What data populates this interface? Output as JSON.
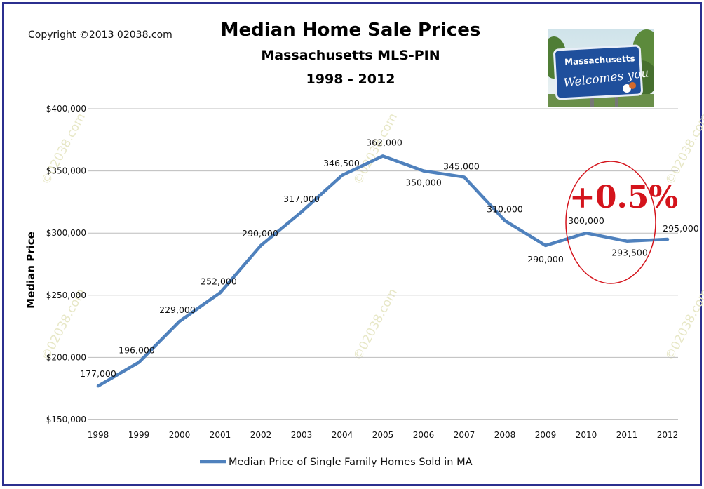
{
  "copyright": "Copyright ©2013 02038.com",
  "watermark_text": "©02038.com",
  "sign": {
    "line1": "Massachusetts",
    "line2": "Welcomes you"
  },
  "annotation": {
    "text": "+0.5%",
    "color": "#d4141c"
  },
  "chart_data": {
    "type": "line",
    "title": "Median Home Sale Prices",
    "subtitle": "Massachusetts MLS-PIN",
    "subtitle2": "1998 - 2012",
    "xlabel": "",
    "ylabel": "Median Price",
    "ylim": [
      150000,
      400000
    ],
    "yticks": [
      150000,
      200000,
      250000,
      300000,
      350000,
      400000
    ],
    "ytick_labels": [
      "$150,000",
      "$200,000",
      "$250,000",
      "$300,000",
      "$350,000",
      "$400,000"
    ],
    "grid": true,
    "legend_position": "bottom",
    "categories": [
      "1998",
      "1999",
      "2000",
      "2001",
      "2002",
      "2003",
      "2004",
      "2005",
      "2006",
      "2007",
      "2008",
      "2009",
      "2010",
      "2011",
      "2012"
    ],
    "series": [
      {
        "name": "Median Price of Single Family Homes Sold in MA",
        "color": "#4f81bd",
        "values": [
          177000,
          196000,
          229000,
          252000,
          290000,
          317000,
          346500,
          362000,
          350000,
          345000,
          310000,
          290000,
          300000,
          293500,
          295000
        ],
        "labels": [
          "177,000",
          "196,000",
          "229,000",
          "252,000",
          "290,000",
          "317,000",
          "346,500",
          "362,000",
          "350,000",
          "345,000",
          "310,000",
          "290,000",
          "300,000",
          "293,500",
          "295,000"
        ]
      }
    ]
  }
}
